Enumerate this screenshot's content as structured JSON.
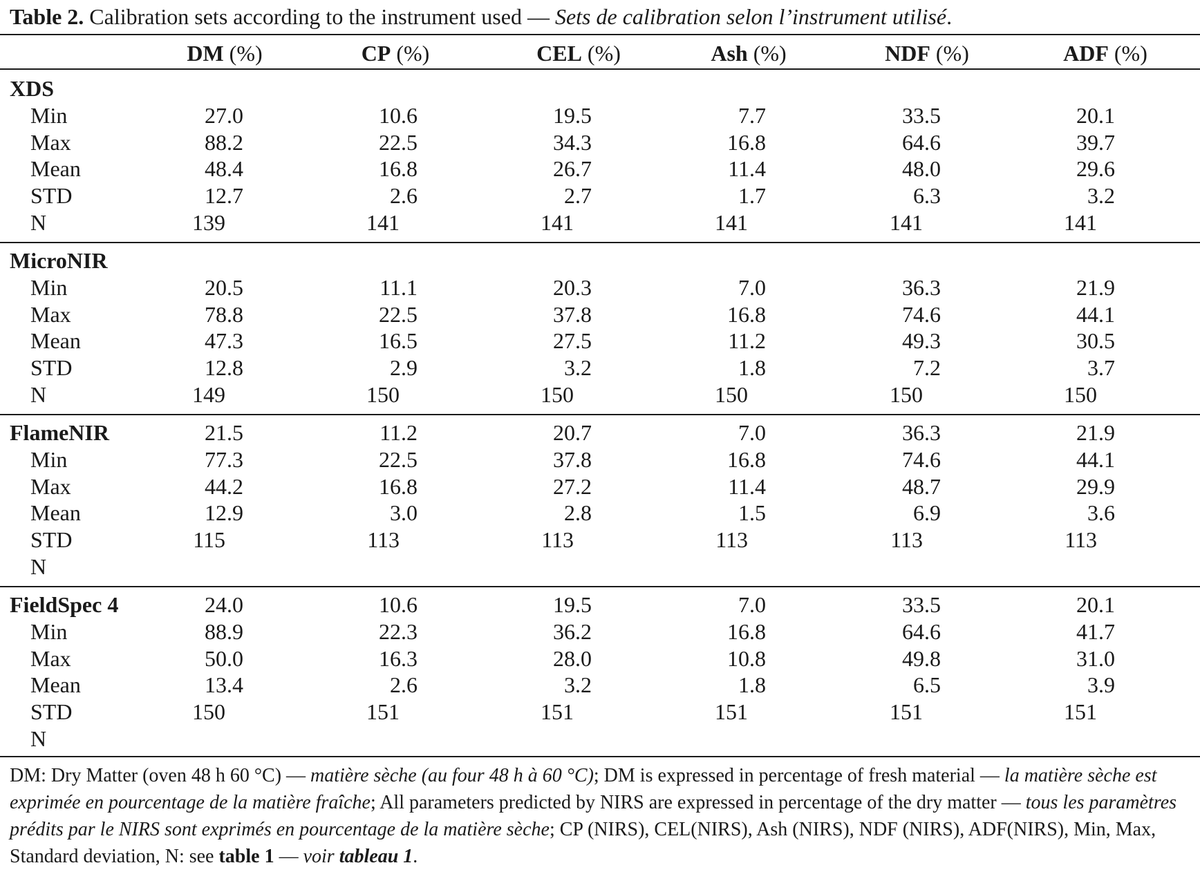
{
  "caption": {
    "label": "Table 2.",
    "text_en": " Calibration sets according to the instrument used — ",
    "text_fr": "Sets de calibration selon l’instrument utilisé",
    "end": "."
  },
  "columns": [
    {
      "abbr": "DM",
      "unit": " (%)"
    },
    {
      "abbr": "CP",
      "unit": " (%)"
    },
    {
      "abbr": "CEL",
      "unit": " (%)"
    },
    {
      "abbr": "Ash",
      "unit": " (%)"
    },
    {
      "abbr": "NDF",
      "unit": " (%)"
    },
    {
      "abbr": "ADF",
      "unit": " (%)"
    }
  ],
  "groups": [
    {
      "name": "XDS",
      "row_labels": [
        "Min",
        "Max",
        "Mean",
        "STD",
        "N"
      ],
      "rows": [
        [
          "27.0",
          "10.6",
          "19.5",
          "7.7",
          "33.5",
          "20.1"
        ],
        [
          "88.2",
          "22.5",
          "34.3",
          "16.8",
          "64.6",
          "39.7"
        ],
        [
          "48.4",
          "16.8",
          "26.7",
          "11.4",
          "48.0",
          "29.6"
        ],
        [
          "12.7",
          "2.6",
          "2.7",
          "1.7",
          "6.3",
          "3.2"
        ],
        [
          "139",
          "141",
          "141",
          "141",
          "141",
          "141"
        ]
      ]
    },
    {
      "name": "MicroNIR",
      "row_labels": [
        "Min",
        "Max",
        "Mean",
        "STD",
        "N"
      ],
      "rows": [
        [
          "20.5",
          "11.1",
          "20.3",
          "7.0",
          "36.3",
          "21.9"
        ],
        [
          "78.8",
          "22.5",
          "37.8",
          "16.8",
          "74.6",
          "44.1"
        ],
        [
          "47.3",
          "16.5",
          "27.5",
          "11.2",
          "49.3",
          "30.5"
        ],
        [
          "12.8",
          "2.9",
          "3.2",
          "1.8",
          "7.2",
          "3.7"
        ],
        [
          "149",
          "150",
          "150",
          "150",
          "150",
          "150"
        ]
      ]
    },
    {
      "name": "FlameNIR",
      "row_labels": [
        "Min",
        "Max",
        "Mean",
        "STD",
        "N"
      ],
      "rows": [
        [
          "21.5",
          "11.2",
          "20.7",
          "7.0",
          "36.3",
          "21.9"
        ],
        [
          "77.3",
          "22.5",
          "37.8",
          "16.8",
          "74.6",
          "44.1"
        ],
        [
          "44.2",
          "16.8",
          "27.2",
          "11.4",
          "48.7",
          "29.9"
        ],
        [
          "12.9",
          "3.0",
          "2.8",
          "1.5",
          "6.9",
          "3.6"
        ],
        [
          "115",
          "113",
          "113",
          "113",
          "113",
          "113"
        ]
      ]
    },
    {
      "name": "FieldSpec 4",
      "row_labels": [
        "Min",
        "Max",
        "Mean",
        "STD",
        "N"
      ],
      "rows": [
        [
          "24.0",
          "10.6",
          "19.5",
          "7.0",
          "33.5",
          "20.1"
        ],
        [
          "88.9",
          "22.3",
          "36.2",
          "16.8",
          "64.6",
          "41.7"
        ],
        [
          "50.0",
          "16.3",
          "28.0",
          "10.8",
          "49.8",
          "31.0"
        ],
        [
          "13.4",
          "2.6",
          "3.2",
          "1.8",
          "6.5",
          "3.9"
        ],
        [
          "150",
          "151",
          "151",
          "151",
          "151",
          "151"
        ]
      ]
    }
  ],
  "footnote": {
    "p1": "DM: Dry Matter (oven 48 h 60 °C) — ",
    "p2": "matière sèche (au four 48 h à 60 °C)",
    "p3": "; DM is expressed in percentage of fresh material — ",
    "p4": "la matière sèche est exprimée en pourcentage de la matière fraîche",
    "p5": "; All parameters predicted by NIRS are expressed in percentage of the dry matter — ",
    "p6": "tous les paramètres prédits par le NIRS sont exprimés en pourcentage de la matière sèche",
    "p7": "; CP (NIRS), CEL(NIRS), Ash (NIRS), NDF (NIRS), ADF(NIRS), Min, Max, Standard deviation, N: see ",
    "p8": "table 1",
    "p9": " — ",
    "p10": "voir ",
    "p11": "tableau 1",
    "p12": "."
  }
}
